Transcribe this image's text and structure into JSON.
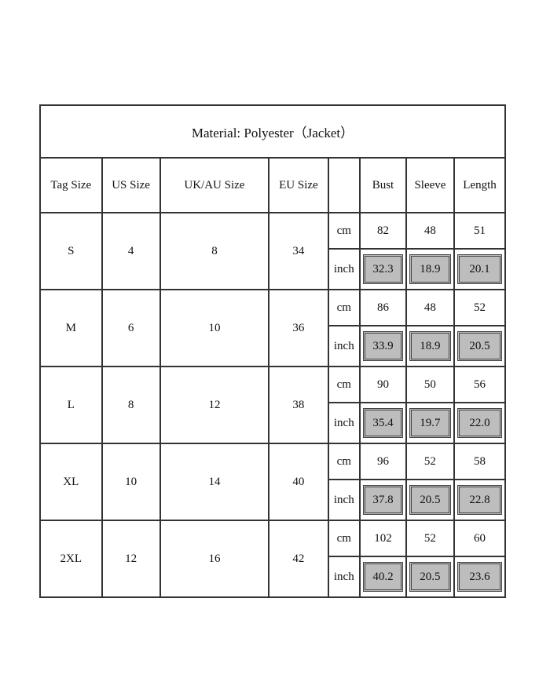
{
  "title": "Material: Polyester（Jacket）",
  "headers": [
    "Tag Size",
    "US Size",
    "UK/AU Size",
    "EU Size",
    "",
    "Bust",
    "Sleeve",
    "Length"
  ],
  "units": {
    "cm": "cm",
    "inch": "inch"
  },
  "rows": [
    {
      "tag": "S",
      "us": "4",
      "uk": "8",
      "eu": "34",
      "cm": [
        "82",
        "48",
        "51"
      ],
      "inch": [
        "32.3",
        "18.9",
        "20.1"
      ]
    },
    {
      "tag": "M",
      "us": "6",
      "uk": "10",
      "eu": "36",
      "cm": [
        "86",
        "48",
        "52"
      ],
      "inch": [
        "33.9",
        "18.9",
        "20.5"
      ]
    },
    {
      "tag": "L",
      "us": "8",
      "uk": "12",
      "eu": "38",
      "cm": [
        "90",
        "50",
        "56"
      ],
      "inch": [
        "35.4",
        "19.7",
        "22.0"
      ]
    },
    {
      "tag": "XL",
      "us": "10",
      "uk": "14",
      "eu": "40",
      "cm": [
        "96",
        "52",
        "58"
      ],
      "inch": [
        "37.8",
        "20.5",
        "22.8"
      ]
    },
    {
      "tag": "2XL",
      "us": "12",
      "uk": "16",
      "eu": "42",
      "cm": [
        "102",
        "52",
        "60"
      ],
      "inch": [
        "40.2",
        "20.5",
        "23.6"
      ]
    }
  ],
  "colors": {
    "inch_cell": "#bdbdbd",
    "border": "#333333"
  }
}
